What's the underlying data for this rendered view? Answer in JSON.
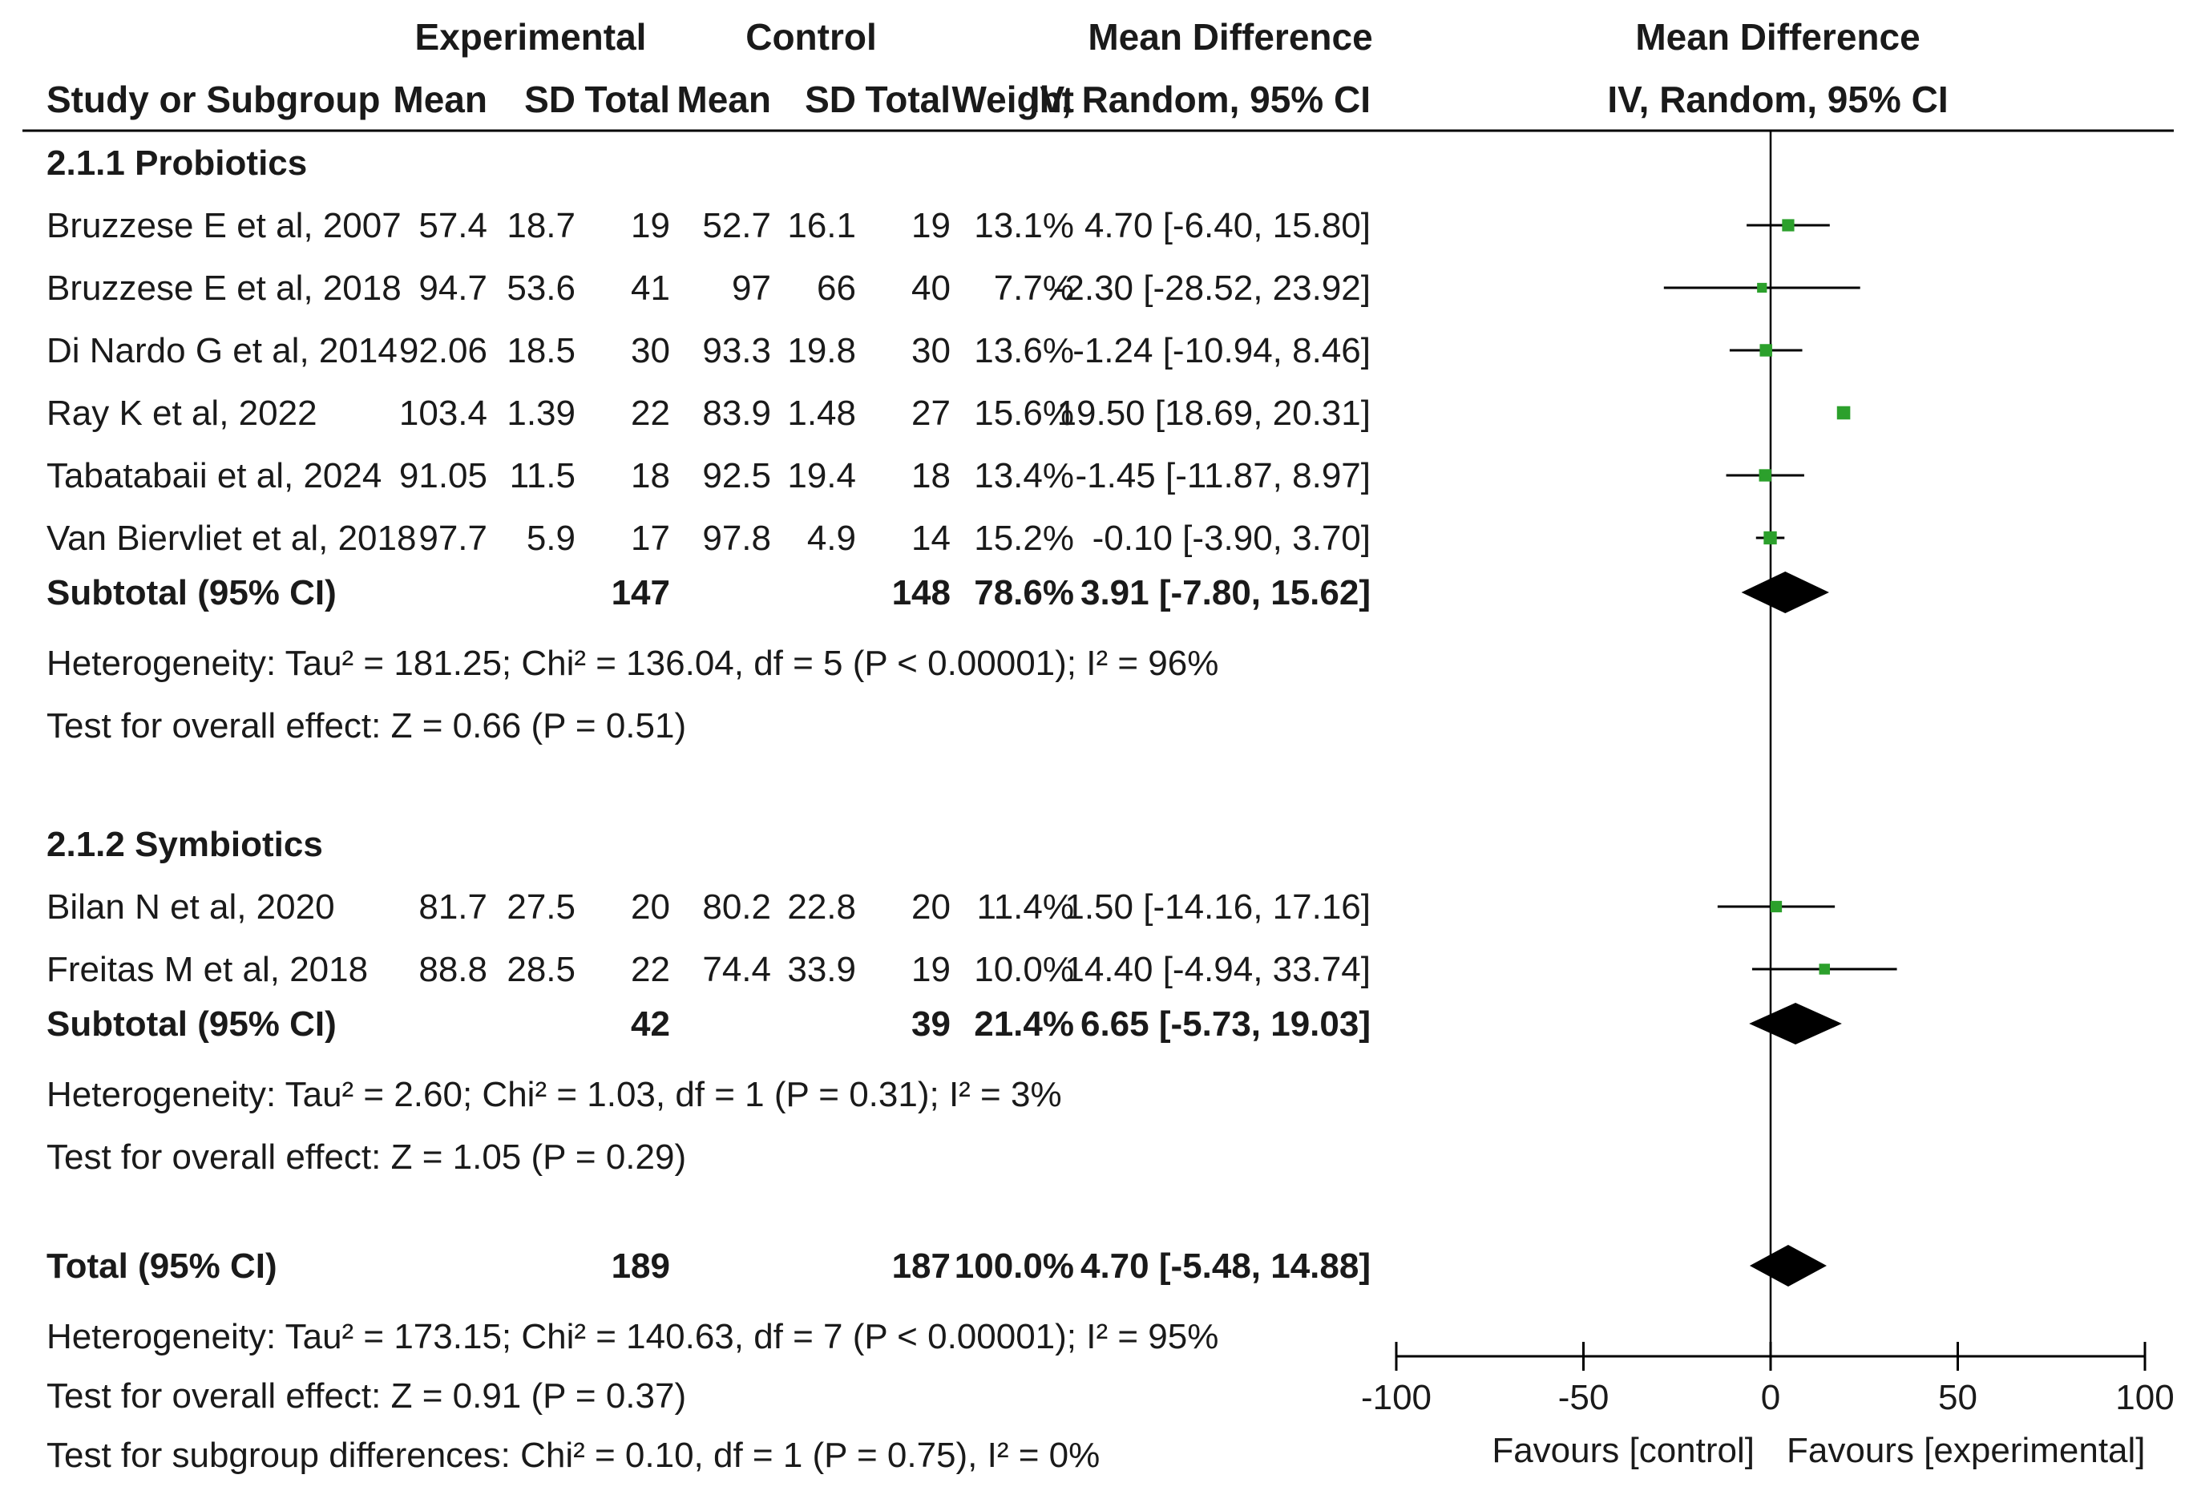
{
  "chart_data": {
    "type": "forest",
    "headers": {
      "group_experimental": "Experimental",
      "group_control": "Control",
      "group_md": "Mean Difference",
      "plot_title": "Mean Difference",
      "col_study": "Study or Subgroup",
      "col_exp_mean": "Mean",
      "col_exp_sd": "SD",
      "col_exp_total": "Total",
      "col_ctl_mean": "Mean",
      "col_ctl_sd": "SD",
      "col_ctl_total": "Total",
      "col_weight": "Weight",
      "col_ci": "IV, Random, 95% CI",
      "plot_subtitle": "IV, Random, 95% CI"
    },
    "axis": {
      "xlim": [
        -100,
        100
      ],
      "ticks": [
        {
          "value": -100,
          "label": "-100"
        },
        {
          "value": -50,
          "label": "-50"
        },
        {
          "value": 0,
          "label": "0"
        },
        {
          "value": 50,
          "label": "50"
        },
        {
          "value": 100,
          "label": "100"
        }
      ],
      "favours_left": "Favours [control]",
      "favours_right": "Favours [experimental]"
    },
    "subgroups": [
      {
        "title": "2.1.1 Probiotics",
        "studies": [
          {
            "name": "Bruzzese E et al, 2007",
            "exp_mean": "57.4",
            "exp_sd": "18.7",
            "exp_total": "19",
            "ctl_mean": "52.7",
            "ctl_sd": "16.1",
            "ctl_total": "19",
            "weight": "13.1%",
            "ci_text": "4.70 [-6.40, 15.80]",
            "md": 4.7,
            "lo": -6.4,
            "hi": 15.8
          },
          {
            "name": "Bruzzese E et al, 2018",
            "exp_mean": "94.7",
            "exp_sd": "53.6",
            "exp_total": "41",
            "ctl_mean": "97",
            "ctl_sd": "66",
            "ctl_total": "40",
            "weight": "7.7%",
            "ci_text": "-2.30 [-28.52, 23.92]",
            "md": -2.3,
            "lo": -28.52,
            "hi": 23.92
          },
          {
            "name": "Di Nardo G et al, 2014",
            "exp_mean": "92.06",
            "exp_sd": "18.5",
            "exp_total": "30",
            "ctl_mean": "93.3",
            "ctl_sd": "19.8",
            "ctl_total": "30",
            "weight": "13.6%",
            "ci_text": "-1.24 [-10.94, 8.46]",
            "md": -1.24,
            "lo": -10.94,
            "hi": 8.46
          },
          {
            "name": "Ray K et al, 2022",
            "exp_mean": "103.4",
            "exp_sd": "1.39",
            "exp_total": "22",
            "ctl_mean": "83.9",
            "ctl_sd": "1.48",
            "ctl_total": "27",
            "weight": "15.6%",
            "ci_text": "19.50 [18.69, 20.31]",
            "md": 19.5,
            "lo": 18.69,
            "hi": 20.31
          },
          {
            "name": "Tabatabaii et al, 2024",
            "exp_mean": "91.05",
            "exp_sd": "11.5",
            "exp_total": "18",
            "ctl_mean": "92.5",
            "ctl_sd": "19.4",
            "ctl_total": "18",
            "weight": "13.4%",
            "ci_text": "-1.45 [-11.87, 8.97]",
            "md": -1.45,
            "lo": -11.87,
            "hi": 8.97
          },
          {
            "name": "Van Biervliet et al, 2018",
            "exp_mean": "97.7",
            "exp_sd": "5.9",
            "exp_total": "17",
            "ctl_mean": "97.8",
            "ctl_sd": "4.9",
            "ctl_total": "14",
            "weight": "15.2%",
            "ci_text": "-0.10 [-3.90, 3.70]",
            "md": -0.1,
            "lo": -3.9,
            "hi": 3.7
          }
        ],
        "subtotal": {
          "label": "Subtotal (95% CI)",
          "exp_total": "147",
          "ctl_total": "148",
          "weight": "78.6%",
          "ci_text": "3.91 [-7.80, 15.62]",
          "md": 3.91,
          "lo": -7.8,
          "hi": 15.62
        },
        "heterogeneity": "Heterogeneity: Tau² = 181.25; Chi² = 136.04, df = 5 (P < 0.00001); I² = 96%",
        "overall_effect": "Test for overall effect: Z = 0.66 (P = 0.51)"
      },
      {
        "title": "2.1.2 Symbiotics",
        "studies": [
          {
            "name": "Bilan N et al, 2020",
            "exp_mean": "81.7",
            "exp_sd": "27.5",
            "exp_total": "20",
            "ctl_mean": "80.2",
            "ctl_sd": "22.8",
            "ctl_total": "20",
            "weight": "11.4%",
            "ci_text": "1.50 [-14.16, 17.16]",
            "md": 1.5,
            "lo": -14.16,
            "hi": 17.16
          },
          {
            "name": "Freitas M et al, 2018",
            "exp_mean": "88.8",
            "exp_sd": "28.5",
            "exp_total": "22",
            "ctl_mean": "74.4",
            "ctl_sd": "33.9",
            "ctl_total": "19",
            "weight": "10.0%",
            "ci_text": "14.40 [-4.94, 33.74]",
            "md": 14.4,
            "lo": -4.94,
            "hi": 33.74
          }
        ],
        "subtotal": {
          "label": "Subtotal (95% CI)",
          "exp_total": "42",
          "ctl_total": "39",
          "weight": "21.4%",
          "ci_text": "6.65 [-5.73, 19.03]",
          "md": 6.65,
          "lo": -5.73,
          "hi": 19.03
        },
        "heterogeneity": "Heterogeneity: Tau² = 2.60; Chi² = 1.03, df = 1 (P = 0.31); I² = 3%",
        "overall_effect": "Test for overall effect: Z = 1.05 (P = 0.29)"
      }
    ],
    "total": {
      "label": "Total (95% CI)",
      "exp_total": "189",
      "ctl_total": "187",
      "weight": "100.0%",
      "ci_text": "4.70 [-5.48, 14.88]",
      "md": 4.7,
      "lo": -5.48,
      "hi": 14.88
    },
    "total_heterogeneity": "Heterogeneity: Tau² = 173.15; Chi² = 140.63, df = 7 (P < 0.00001); I² = 95%",
    "total_overall_effect": "Test for overall effect: Z = 0.91 (P = 0.37)",
    "subgroup_differences": "Test for subgroup differences: Chi² = 0.10, df = 1 (P = 0.75), I² = 0%",
    "colors": {
      "marker": "#2ca02c",
      "line": "#000000",
      "text": "#1a1a1a"
    }
  }
}
